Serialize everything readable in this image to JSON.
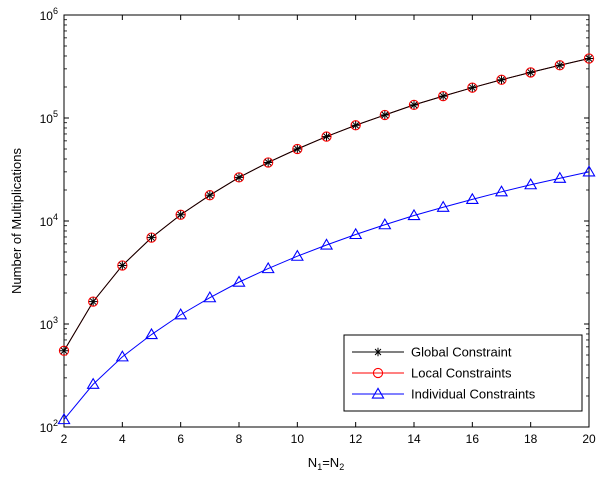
{
  "chart_data": {
    "type": "line",
    "xlabel_main": "N",
    "xlabel_sub1": "1",
    "xlabel_mid": "=N",
    "xlabel_sub2": "2",
    "ylabel": "Number of Multiplications",
    "xlim": [
      2,
      20
    ],
    "ylim": [
      100,
      1000000
    ],
    "yscale": "log",
    "x_ticks": [
      2,
      4,
      6,
      8,
      10,
      12,
      14,
      16,
      18,
      20
    ],
    "y_ticks": [
      {
        "base": "10",
        "exp": "2",
        "value": 100
      },
      {
        "base": "10",
        "exp": "3",
        "value": 1000
      },
      {
        "base": "10",
        "exp": "4",
        "value": 10000
      },
      {
        "base": "10",
        "exp": "5",
        "value": 100000
      },
      {
        "base": "10",
        "exp": "6",
        "value": 1000000
      }
    ],
    "x": [
      2,
      3,
      4,
      5,
      6,
      7,
      8,
      9,
      10,
      11,
      12,
      13,
      14,
      15,
      16,
      17,
      18,
      19,
      20
    ],
    "legend_position": "bottom-right",
    "series": [
      {
        "name": "Global Constraint",
        "color": "#000000",
        "marker": "asterisk",
        "values": [
          550,
          1650,
          3700,
          6900,
          11500,
          17800,
          26500,
          37000,
          50000,
          66000,
          85000,
          107000,
          134000,
          163000,
          197000,
          235000,
          277000,
          325000,
          378000
        ]
      },
      {
        "name": "Local Constraints",
        "color": "#ff0000",
        "marker": "circle",
        "values": [
          550,
          1650,
          3700,
          6900,
          11500,
          17800,
          26500,
          37000,
          50000,
          66000,
          85000,
          107000,
          134000,
          163000,
          197000,
          235000,
          277000,
          325000,
          378000
        ]
      },
      {
        "name": "Individual Constraints",
        "color": "#0000ff",
        "marker": "triangle",
        "values": [
          118,
          260,
          480,
          790,
          1230,
          1800,
          2550,
          3450,
          4550,
          5850,
          7400,
          9200,
          11300,
          13600,
          16200,
          19200,
          22500,
          26000,
          30000
        ]
      }
    ]
  }
}
